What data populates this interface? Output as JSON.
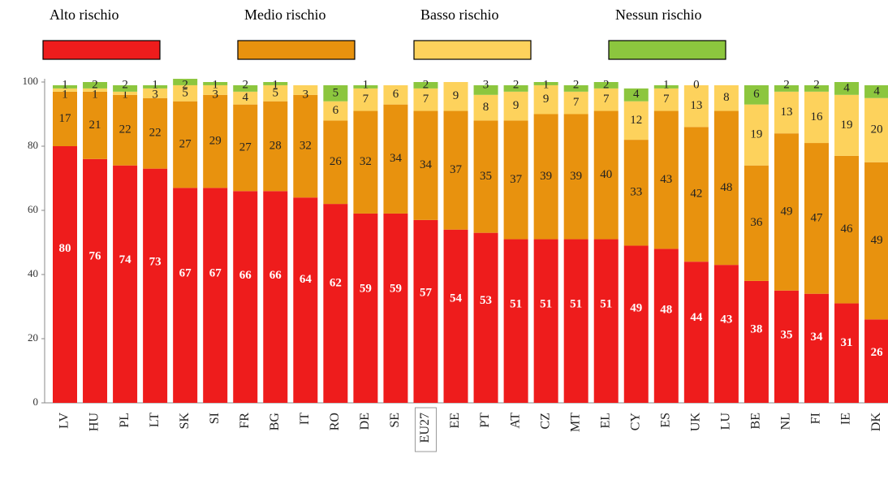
{
  "chart_data": {
    "type": "stacked_bar",
    "categories": [
      "LV",
      "HU",
      "PL",
      "LT",
      "SK",
      "SI",
      "FR",
      "BG",
      "IT",
      "RO",
      "DE",
      "SE",
      "EU27",
      "EE",
      "PT",
      "AT",
      "CZ",
      "MT",
      "EL",
      "CY",
      "ES",
      "UK",
      "LU",
      "BE",
      "NL",
      "FI",
      "IE",
      "DK"
    ],
    "series": [
      {
        "name": "Alto rischio",
        "color": "#ee1c1c",
        "values": [
          80,
          76,
          74,
          73,
          67,
          67,
          66,
          66,
          64,
          62,
          59,
          59,
          57,
          54,
          53,
          51,
          51,
          51,
          51,
          49,
          48,
          44,
          43,
          38,
          35,
          34,
          31,
          26
        ]
      },
      {
        "name": "Medio rischio",
        "color": "#e8920e",
        "values": [
          17,
          21,
          22,
          22,
          27,
          29,
          27,
          28,
          32,
          26,
          32,
          34,
          34,
          37,
          35,
          37,
          39,
          39,
          40,
          33,
          43,
          42,
          48,
          36,
          49,
          47,
          46,
          49
        ]
      },
      {
        "name": "Basso rischio",
        "color": "#fdd25c",
        "values": [
          1,
          1,
          1,
          3,
          5,
          3,
          4,
          5,
          3,
          6,
          7,
          6,
          7,
          9,
          8,
          9,
          9,
          7,
          7,
          12,
          7,
          13,
          8,
          19,
          13,
          16,
          19,
          20
        ]
      },
      {
        "name": "Nessun rischio",
        "color": "#8cc63e",
        "values": [
          1,
          2,
          2,
          1,
          2,
          1,
          2,
          1,
          null,
          5,
          1,
          null,
          2,
          null,
          3,
          2,
          1,
          2,
          2,
          4,
          1,
          0,
          null,
          6,
          2,
          2,
          4,
          4
        ]
      }
    ],
    "ylim": [
      0,
      100
    ],
    "yticks": [
      0,
      20,
      40,
      60,
      80,
      100
    ]
  }
}
